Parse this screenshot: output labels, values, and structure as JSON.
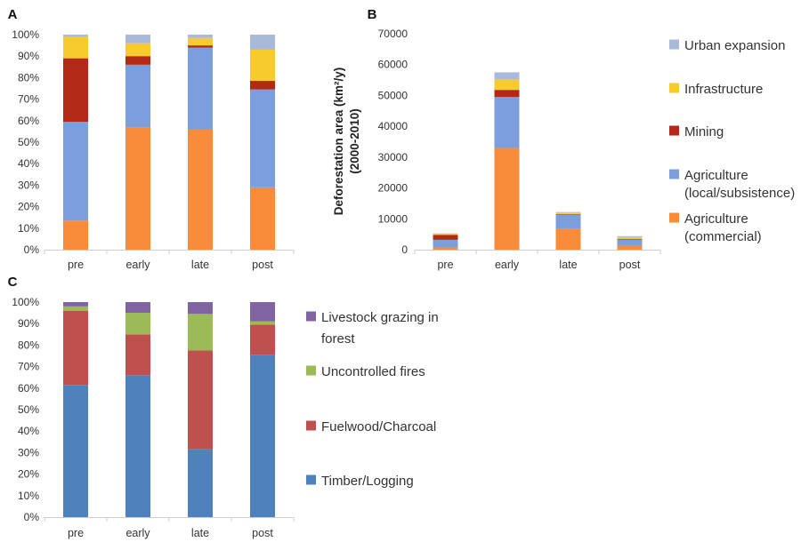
{
  "chart_data": [
    {
      "panel": "A",
      "type": "bar",
      "stacked": true,
      "categories": [
        "pre",
        "early",
        "late",
        "post"
      ],
      "ylim": [
        0,
        100
      ],
      "yticks": [
        "0%",
        "10%",
        "20%",
        "30%",
        "40%",
        "50%",
        "60%",
        "70%",
        "80%",
        "90%",
        "100%"
      ],
      "series": [
        {
          "name": "Agriculture (commercial)",
          "color": "#F98C3A",
          "values": [
            13.5,
            57,
            56,
            29
          ]
        },
        {
          "name": "Agriculture (local/subsistence)",
          "color": "#7B9FDC",
          "values": [
            46,
            29,
            38,
            45.5
          ]
        },
        {
          "name": "Mining",
          "color": "#B22A17",
          "values": [
            29.5,
            4,
            1,
            4
          ]
        },
        {
          "name": "Infrastructure",
          "color": "#F7CA2E",
          "values": [
            10,
            6,
            3.5,
            14.5
          ]
        },
        {
          "name": "Urban expansion",
          "color": "#A9B9DA",
          "values": [
            1,
            4,
            1.5,
            7
          ]
        }
      ]
    },
    {
      "panel": "B",
      "type": "bar",
      "stacked": true,
      "categories": [
        "pre",
        "early",
        "late",
        "post"
      ],
      "ylabel": "Deforestation area (km²/y) (2000-2010)",
      "ylabel_lines": [
        "Deforestation area (km²/y)",
        "(2000-2010)"
      ],
      "ylim": [
        0,
        70000
      ],
      "yticks": [
        "0",
        "10000",
        "20000",
        "30000",
        "40000",
        "50000",
        "60000",
        "70000"
      ],
      "series": [
        {
          "name": "Agriculture (commercial)",
          "color": "#F98C3A",
          "values": [
            700,
            33000,
            6800,
            1300
          ]
        },
        {
          "name": "Agriculture (local/subsistence)",
          "color": "#7B9FDC",
          "values": [
            2500,
            16500,
            4600,
            2000
          ]
        },
        {
          "name": "Mining",
          "color": "#B22A17",
          "values": [
            1600,
            2300,
            150,
            200
          ]
        },
        {
          "name": "Infrastructure",
          "color": "#F7CA2E",
          "values": [
            450,
            3400,
            450,
            600
          ]
        },
        {
          "name": "Urban expansion",
          "color": "#A9B9DA",
          "values": [
            50,
            2300,
            200,
            300
          ]
        }
      ],
      "legend": [
        {
          "lines": [
            "Urban expansion"
          ],
          "color": "#A9B9DA"
        },
        {
          "lines": [
            "Infrastructure"
          ],
          "color": "#F7CA2E"
        },
        {
          "lines": [
            "Mining"
          ],
          "color": "#B22A17"
        },
        {
          "lines": [
            "Agriculture",
            "(local/subsistence)"
          ],
          "color": "#7B9FDC"
        },
        {
          "lines": [
            "Agriculture",
            "(commercial)"
          ],
          "color": "#F98C3A"
        }
      ]
    },
    {
      "panel": "C",
      "type": "bar",
      "stacked": true,
      "categories": [
        "pre",
        "early",
        "late",
        "post"
      ],
      "ylim": [
        0,
        100
      ],
      "yticks": [
        "0%",
        "10%",
        "20%",
        "30%",
        "40%",
        "50%",
        "60%",
        "70%",
        "80%",
        "90%",
        "100%"
      ],
      "series": [
        {
          "name": "Timber/Logging",
          "color": "#4F81BD",
          "values": [
            61.5,
            66,
            31.5,
            75.5
          ]
        },
        {
          "name": "Fuelwood/Charcoal",
          "color": "#C0504D",
          "values": [
            34.5,
            19,
            46,
            14
          ]
        },
        {
          "name": "Uncontrolled fires",
          "color": "#9BBB59",
          "values": [
            2,
            10,
            17,
            1.5
          ]
        },
        {
          "name": "Livestock grazing in forest",
          "color": "#8064A2",
          "values": [
            2,
            5,
            5.5,
            9
          ]
        }
      ],
      "legend": [
        {
          "lines": [
            "Livestock grazing in",
            "forest"
          ],
          "color": "#8064A2"
        },
        {
          "lines": [
            "Uncontrolled fires"
          ],
          "color": "#9BBB59"
        },
        {
          "lines": [
            "Fuelwood/Charcoal"
          ],
          "color": "#C0504D"
        },
        {
          "lines": [
            "Timber/Logging"
          ],
          "color": "#4F81BD"
        }
      ]
    }
  ]
}
